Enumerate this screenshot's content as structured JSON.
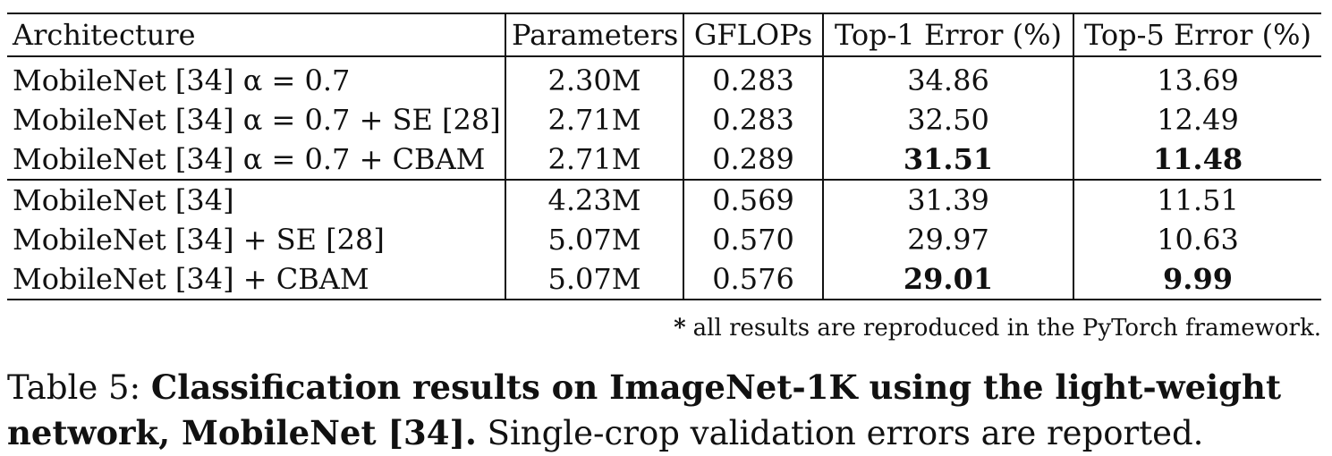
{
  "table": {
    "headers": [
      "Architecture",
      "Parameters",
      "GFLOPs",
      "Top-1 Error (%)",
      "Top-5 Error (%)"
    ],
    "groups": [
      {
        "rows": [
          {
            "arch": "MobileNet [34] α = 0.7",
            "params": "2.30M",
            "gflops": "0.283",
            "top1": "34.86",
            "top5": "13.69"
          },
          {
            "arch": "MobileNet [34] α = 0.7 + SE [28]",
            "params": "2.71M",
            "gflops": "0.283",
            "top1": "32.50",
            "top5": "12.49"
          },
          {
            "arch": "MobileNet [34] α = 0.7 + CBAM",
            "params": "2.71M",
            "gflops": "0.289",
            "top1": "31.51",
            "top5": "11.48"
          }
        ]
      },
      {
        "rows": [
          {
            "arch": "MobileNet [34]",
            "params": "4.23M",
            "gflops": "0.569",
            "top1": "31.39",
            "top5": "11.51"
          },
          {
            "arch": "MobileNet [34] + SE [28]",
            "params": "5.07M",
            "gflops": "0.570",
            "top1": "29.97",
            "top5": "10.63"
          },
          {
            "arch": "MobileNet [34] + CBAM",
            "params": "5.07M",
            "gflops": "0.576",
            "top1": "29.01",
            "top5": "9.99"
          }
        ]
      }
    ]
  },
  "footnote": {
    "marker": "*",
    "text": "all results are reproduced in the PyTorch framework."
  },
  "caption": {
    "label": "Table 5:",
    "bold_text": "Classification results on ImageNet-1K using the light-weight network, MobileNet [34].",
    "rest": "Single-crop validation errors are reported."
  }
}
